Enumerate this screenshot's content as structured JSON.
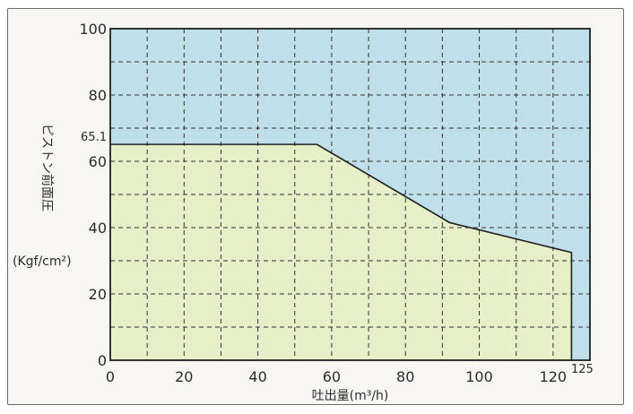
{
  "chart_data": {
    "type": "area",
    "xlabel": "吐出量(m³/h)",
    "ylabel_main": "ピストン前面圧",
    "ylabel_unit": "(Kgf/cm²)",
    "x_ticks": [
      0,
      20,
      40,
      60,
      80,
      100,
      120
    ],
    "y_ticks": [
      0,
      20,
      40,
      60,
      80,
      100
    ],
    "xlim": [
      0,
      130
    ],
    "ylim": [
      0,
      100
    ],
    "grid": true,
    "annotations": {
      "y_max_label": "65.1",
      "x_max_label": "125"
    },
    "series": [
      {
        "x": [
          0,
          56,
          92,
          125,
          125
        ],
        "y": [
          65.1,
          65.1,
          41.5,
          32.5,
          0
        ]
      }
    ],
    "colors": {
      "inside_area": "#e6efc8",
      "outside_area": "#bfe0ea",
      "boundary": "#1f1f1f",
      "grid": "#333333"
    }
  }
}
